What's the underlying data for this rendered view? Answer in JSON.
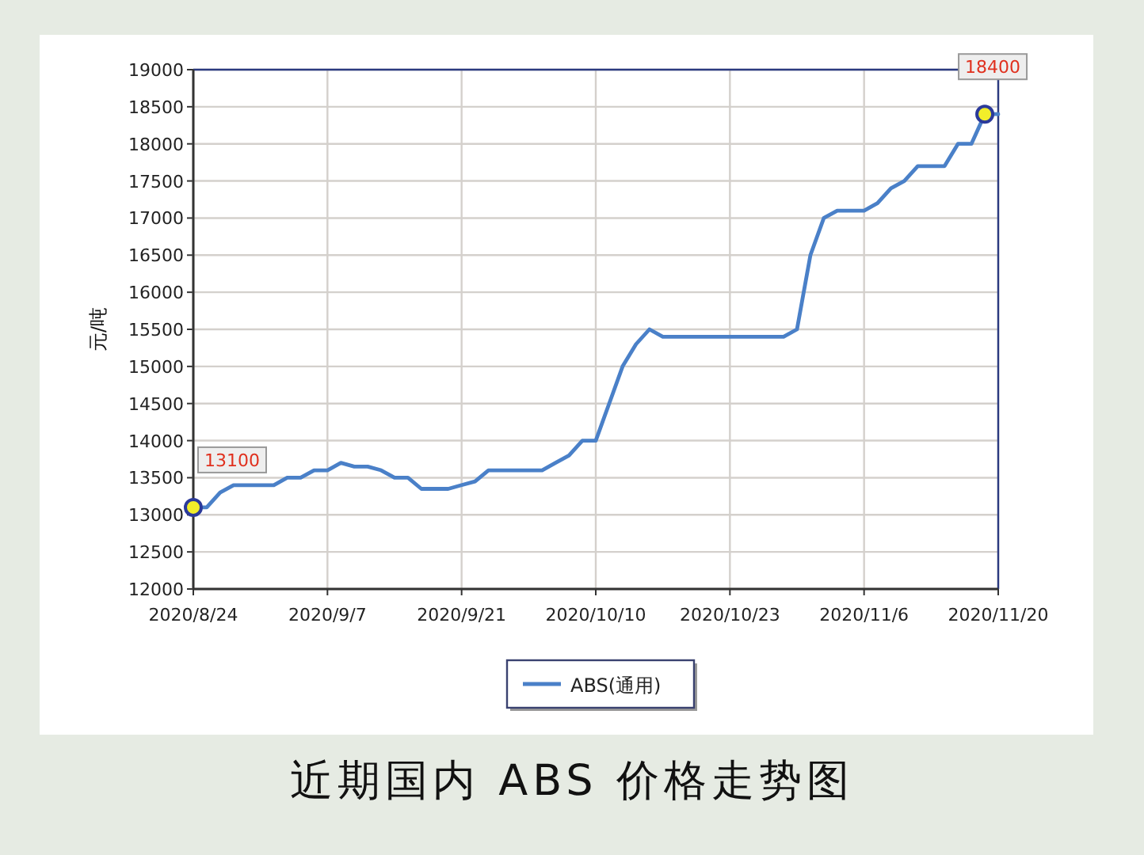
{
  "chart_data": {
    "type": "line",
    "title": "近期国内 ABS 价格走势图",
    "ylabel": "元/吨",
    "categories": [
      "2020/8/24",
      null,
      null,
      null,
      null,
      null,
      null,
      null,
      null,
      null,
      "2020/9/7",
      null,
      null,
      null,
      null,
      null,
      null,
      null,
      null,
      null,
      "2020/9/21",
      null,
      null,
      null,
      null,
      null,
      null,
      null,
      null,
      null,
      "2020/10/10",
      null,
      null,
      null,
      null,
      null,
      null,
      null,
      null,
      null,
      "2020/10/23",
      null,
      null,
      null,
      null,
      null,
      null,
      null,
      null,
      null,
      "2020/11/6",
      null,
      null,
      null,
      null,
      null,
      null,
      null,
      null,
      null,
      "2020/11/20"
    ],
    "series": [
      {
        "name": "ABS(通用)",
        "color": "#4a80c8",
        "values": [
          13100,
          13100,
          13300,
          13400,
          13400,
          13400,
          13400,
          13500,
          13500,
          13600,
          13600,
          13700,
          13650,
          13650,
          13600,
          13500,
          13500,
          13350,
          13350,
          13350,
          13400,
          13450,
          13600,
          13600,
          13600,
          13600,
          13600,
          13700,
          13800,
          14000,
          14000,
          14500,
          15000,
          15300,
          15500,
          15400,
          15400,
          15400,
          15400,
          15400,
          15400,
          15400,
          15400,
          15400,
          15400,
          15500,
          16500,
          17000,
          17100,
          17100,
          17100,
          17200,
          17400,
          17500,
          17700,
          17700,
          17700,
          18000,
          18000,
          18400,
          18400
        ],
        "value_labels": [
          "13100",
          null,
          null,
          null,
          null,
          null,
          null,
          null,
          null,
          null,
          null,
          null,
          null,
          null,
          null,
          null,
          null,
          null,
          null,
          null,
          null,
          null,
          null,
          null,
          null,
          null,
          null,
          null,
          null,
          null,
          null,
          null,
          null,
          null,
          null,
          null,
          null,
          null,
          null,
          null,
          null,
          null,
          null,
          null,
          null,
          null,
          null,
          null,
          null,
          null,
          null,
          null,
          null,
          null,
          null,
          null,
          null,
          null,
          null,
          "18400",
          null
        ]
      }
    ],
    "ylim": [
      12000,
      19000
    ],
    "yticks": [
      12000,
      12500,
      13000,
      13500,
      14000,
      14500,
      15000,
      15500,
      16000,
      16500,
      17000,
      17500,
      18000,
      18500,
      19000
    ],
    "grid": true,
    "legend": "bottom",
    "marker": "none",
    "line_style": "solid"
  }
}
